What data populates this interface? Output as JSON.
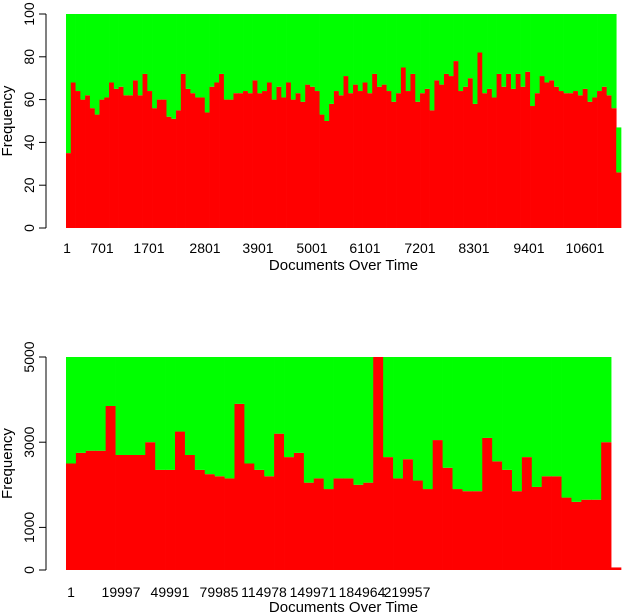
{
  "colors": {
    "red": "#ff0000",
    "green": "#00ff00",
    "axis": "#000000",
    "background": "#ffffff"
  },
  "chart_data": [
    {
      "type": "bar",
      "stacked": true,
      "xlabel": "Documents Over Time",
      "ylabel": "Frequency",
      "ylim": [
        0,
        100
      ],
      "yticks": [
        0,
        20,
        40,
        60,
        80,
        100
      ],
      "xtick_labels": [
        "1",
        "701",
        "1701",
        "2801",
        "3901",
        "5001",
        "6101",
        "7201",
        "8301",
        "9401",
        "10601"
      ],
      "series": [
        {
          "color": "red",
          "values": [
            35,
            68,
            64,
            60,
            62,
            56,
            53,
            60,
            61,
            68,
            65,
            66,
            62,
            62,
            69,
            62,
            72,
            64,
            56,
            60,
            60,
            52,
            51,
            55,
            72,
            65,
            63,
            61,
            61,
            54,
            66,
            68,
            72,
            60,
            60,
            63,
            63,
            64,
            63,
            69,
            63,
            64,
            68,
            60,
            66,
            61,
            68,
            60,
            63,
            59,
            67,
            66,
            64,
            53,
            50,
            58,
            64,
            62,
            71,
            63,
            67,
            64,
            68,
            63,
            72,
            66,
            67,
            64,
            59,
            63,
            75,
            64,
            72,
            59,
            63,
            65,
            55,
            69,
            67,
            72,
            71,
            78,
            64,
            66,
            70,
            58,
            82,
            63,
            65,
            61,
            72,
            66,
            72,
            65,
            72,
            66,
            73,
            57,
            63,
            71,
            68,
            69,
            66,
            64,
            63,
            63,
            64,
            62,
            65,
            59,
            61,
            64,
            66,
            62,
            56,
            26
          ]
        },
        {
          "color": "green",
          "values": [
            65,
            32,
            36,
            40,
            38,
            44,
            47,
            40,
            39,
            32,
            35,
            34,
            38,
            38,
            31,
            38,
            28,
            36,
            44,
            40,
            40,
            48,
            49,
            45,
            28,
            35,
            37,
            39,
            39,
            46,
            34,
            32,
            28,
            40,
            40,
            37,
            37,
            36,
            37,
            31,
            37,
            36,
            32,
            40,
            34,
            39,
            32,
            40,
            37,
            41,
            33,
            34,
            36,
            47,
            50,
            42,
            36,
            38,
            29,
            37,
            33,
            36,
            32,
            37,
            28,
            34,
            33,
            36,
            41,
            37,
            25,
            36,
            28,
            41,
            37,
            35,
            45,
            31,
            33,
            28,
            29,
            22,
            36,
            34,
            30,
            42,
            18,
            37,
            35,
            39,
            28,
            34,
            28,
            35,
            28,
            34,
            27,
            43,
            37,
            29,
            32,
            31,
            34,
            36,
            37,
            37,
            36,
            38,
            35,
            41,
            39,
            36,
            34,
            38,
            44,
            21
          ]
        }
      ]
    },
    {
      "type": "bar",
      "stacked": true,
      "xlabel": "Documents Over Time",
      "ylabel": "Frequency",
      "ylim": [
        0,
        5000
      ],
      "yticks": [
        0,
        1000,
        3000,
        5000
      ],
      "xtick_labels": [
        "1",
        "19997",
        "49991",
        "79985",
        "114978",
        "149971",
        "184964",
        "219957"
      ],
      "series": [
        {
          "color": "red",
          "values": [
            2500,
            2750,
            2800,
            2800,
            3850,
            2700,
            2700,
            2700,
            3000,
            2350,
            2350,
            3250,
            2700,
            2350,
            2250,
            2200,
            2150,
            3900,
            2500,
            2350,
            2200,
            3200,
            2650,
            2750,
            2050,
            2150,
            1900,
            2150,
            2150,
            2000,
            2050,
            5000,
            2650,
            2150,
            2600,
            2100,
            1900,
            3050,
            2400,
            1900,
            1850,
            1850,
            3100,
            2550,
            2350,
            1850,
            2650,
            1950,
            2200,
            2200,
            1700,
            1600,
            1650,
            1650,
            3000,
            60
          ]
        },
        {
          "color": "green",
          "values": [
            2500,
            2250,
            2200,
            2200,
            1150,
            2300,
            2300,
            2300,
            2000,
            2650,
            2650,
            1750,
            2300,
            2650,
            2750,
            2800,
            2850,
            1100,
            2500,
            2650,
            2800,
            1800,
            2350,
            2250,
            2950,
            2850,
            3100,
            2850,
            2850,
            3000,
            2950,
            0,
            2350,
            2850,
            2400,
            2900,
            3100,
            1950,
            2600,
            3100,
            3150,
            3150,
            1900,
            2450,
            2650,
            3150,
            2350,
            3050,
            2800,
            2800,
            3300,
            3400,
            3350,
            3350,
            2000,
            0
          ]
        }
      ]
    }
  ]
}
